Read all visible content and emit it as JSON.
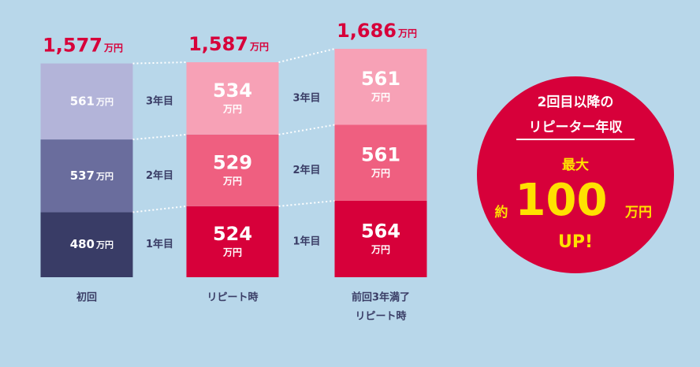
{
  "chart_data": {
    "type": "stacked-bar",
    "categories": [
      [
        "初回"
      ],
      [
        "リピート時"
      ],
      [
        "前回3年満了",
        "リピート時"
      ]
    ],
    "unit": "万円",
    "ylim": [
      0,
      1686
    ],
    "series": [
      {
        "name": "1年目",
        "values": [
          480,
          524,
          564
        ],
        "colors": [
          "#393c66",
          "#d7003a",
          "#d7003a"
        ]
      },
      {
        "name": "2年目",
        "values": [
          537,
          529,
          561
        ],
        "colors": [
          "#6a6d9d",
          "#ef5f80",
          "#ef5f80"
        ]
      },
      {
        "name": "3年目",
        "values": [
          561,
          534,
          561
        ],
        "colors": [
          "#b3b4d9",
          "#f7a1b6",
          "#f7a1b6"
        ]
      }
    ],
    "totals": [
      {
        "value": 1577,
        "label": "1,577"
      },
      {
        "value": 1587,
        "label": "1,587"
      },
      {
        "value": 1686,
        "label": "1,686"
      }
    ],
    "callout": {
      "lines": [
        "2回目以降の",
        "リピーター年収"
      ],
      "max": "最大",
      "prefix": "約",
      "value": 100,
      "unit": "万円",
      "suffix": "UP!"
    }
  }
}
